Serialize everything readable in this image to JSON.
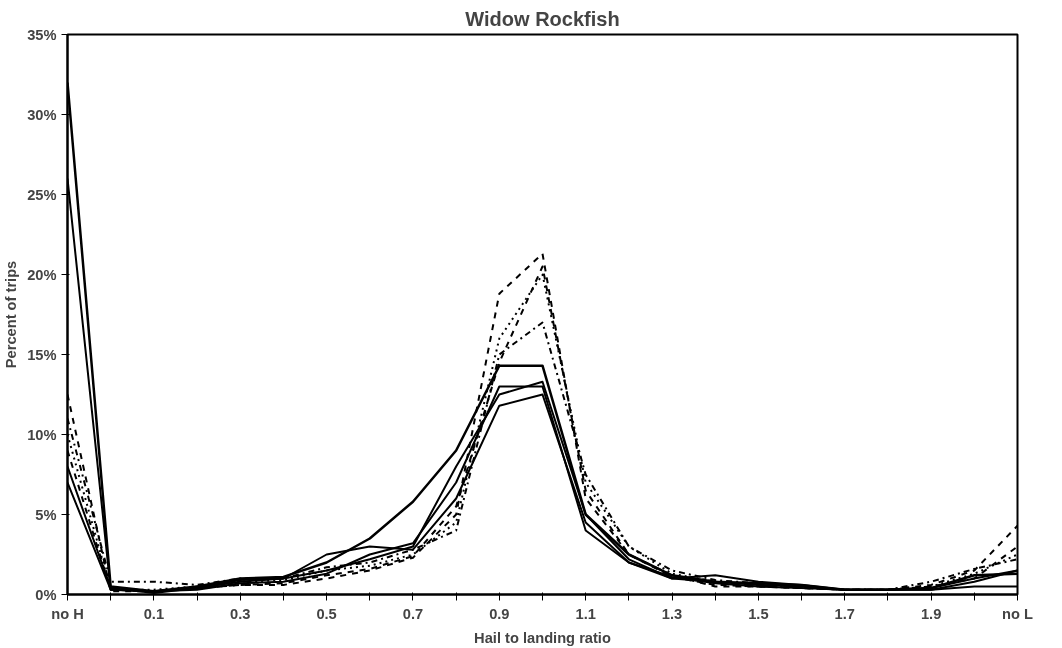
{
  "chart_data": {
    "type": "line",
    "title": "Widow Rockfish",
    "xlabel": "Hail to landing ratio",
    "ylabel": "Percent of trips",
    "categories": [
      "no H",
      null,
      "0.1",
      null,
      "0.3",
      null,
      "0.5",
      null,
      "0.7",
      null,
      "0.9",
      null,
      "1.1",
      null,
      "1.3",
      null,
      "1.5",
      null,
      "1.7",
      null,
      "1.9",
      null,
      "no L"
    ],
    "ylim": [
      0,
      35
    ],
    "yticks": [
      {
        "value": 0,
        "label": "0%"
      },
      {
        "value": 5,
        "label": "5%"
      },
      {
        "value": 10,
        "label": "10%"
      },
      {
        "value": 15,
        "label": "15%"
      },
      {
        "value": 20,
        "label": "20%"
      },
      {
        "value": 25,
        "label": "25%"
      },
      {
        "value": 30,
        "label": "30%"
      },
      {
        "value": 35,
        "label": "35%"
      }
    ],
    "grid": false,
    "marker": "none",
    "series": [
      {
        "color": "#000000",
        "line_style": "solid",
        "values": [
          32,
          0.5,
          0.2,
          0.5,
          1,
          1.1,
          2,
          3.5,
          5.8,
          9,
          14.3,
          14.3,
          5,
          2.5,
          1.2,
          0.8,
          0.7,
          0.6,
          0.3,
          0.3,
          0.4,
          1.2,
          1.3
        ]
      },
      {
        "color": "#000000",
        "line_style": "solid",
        "values": [
          26,
          0.3,
          0.2,
          0.4,
          0.8,
          1,
          2.5,
          3,
          2.8,
          6,
          11.8,
          12.5,
          4.5,
          2,
          1,
          1.2,
          0.8,
          0.6,
          0.3,
          0.3,
          0.3,
          0.8,
          1.5
        ]
      },
      {
        "color": "#000000",
        "line_style": "solid",
        "values": [
          8,
          0.4,
          0.1,
          0.4,
          0.9,
          1,
          1.5,
          2.2,
          3,
          8,
          12.5,
          13.3,
          5,
          2.2,
          1,
          0.8,
          0.6,
          0.5,
          0.3,
          0.3,
          0.4,
          1,
          1.5
        ]
      },
      {
        "color": "#000000",
        "line_style": "solid",
        "values": [
          7,
          0.3,
          0.2,
          0.3,
          0.7,
          0.8,
          1.3,
          2.5,
          3.2,
          7,
          13,
          13,
          4,
          2,
          1.1,
          0.7,
          0.5,
          0.4,
          0.3,
          0.3,
          0.3,
          0.5,
          0.5
        ]
      },
      {
        "color": "#000000",
        "line_style": "dashed",
        "values": [
          12.5,
          0.2,
          0.2,
          0.4,
          0.6,
          0.6,
          1,
          1.5,
          2.3,
          5,
          18.8,
          21.3,
          6,
          2.5,
          1.2,
          0.5,
          0.5,
          0.4,
          0.3,
          0.3,
          0.6,
          1.5,
          4.3
        ]
      },
      {
        "color": "#000000",
        "line_style": "dotted",
        "values": [
          10,
          0.3,
          0.3,
          0.5,
          0.8,
          0.9,
          1.5,
          1.8,
          2.5,
          4.5,
          16,
          20,
          7,
          3,
          1.3,
          0.8,
          0.6,
          0.5,
          0.3,
          0.3,
          0.5,
          1.3,
          2.5
        ]
      },
      {
        "color": "#000000",
        "line_style": "dashdot",
        "values": [
          11,
          0.8,
          0.8,
          0.6,
          1,
          1,
          1.7,
          2,
          2.8,
          4,
          15,
          17,
          7.5,
          3,
          1.5,
          0.9,
          0.7,
          0.5,
          0.3,
          0.3,
          0.8,
          1.6,
          2.2
        ]
      },
      {
        "color": "#000000",
        "line_style": "dashed",
        "values": [
          9,
          0.3,
          0.2,
          0.4,
          0.6,
          0.7,
          1.2,
          1.6,
          2.4,
          5.5,
          14.5,
          20.5,
          6.5,
          2.5,
          1.1,
          0.6,
          0.5,
          0.4,
          0.3,
          0.3,
          0.5,
          1,
          3
        ]
      }
    ]
  }
}
